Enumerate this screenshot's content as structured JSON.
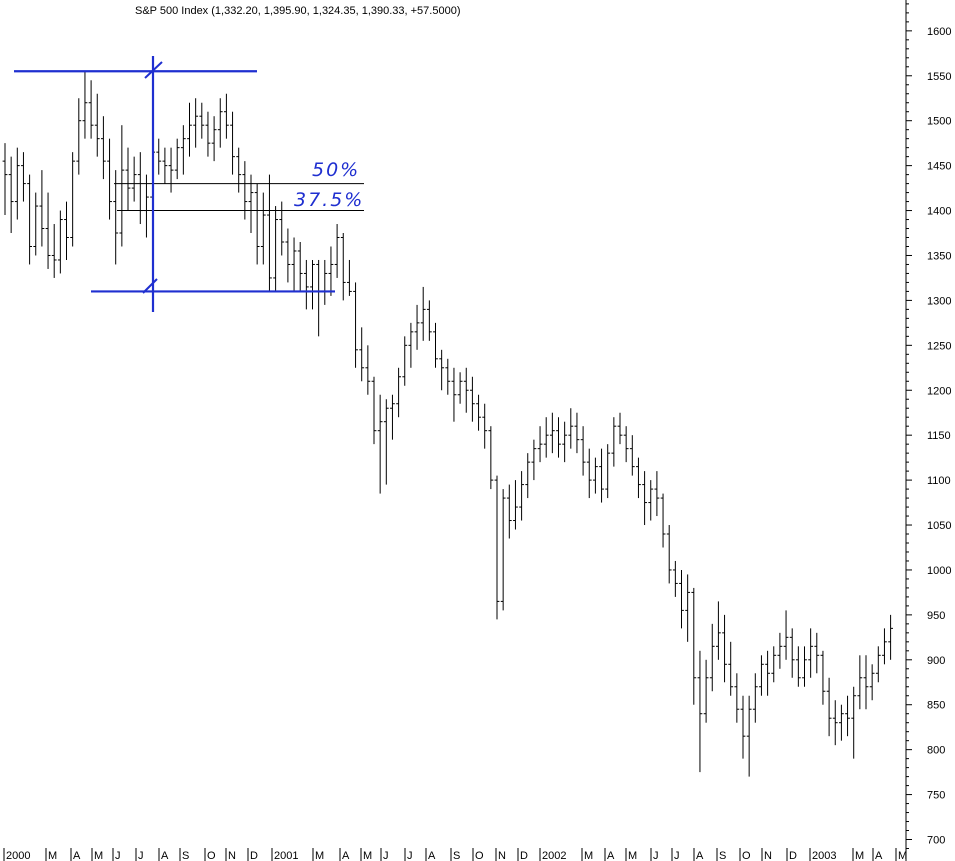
{
  "chart_data": {
    "type": "ohlc",
    "title": "S&P 500 Index (1,332.20, 1,395.90, 1,324.35, 1,390.33, +57.5000)",
    "y_axis": {
      "side": "right",
      "ylim": [
        700,
        1620
      ],
      "ticks": [
        700,
        750,
        800,
        850,
        900,
        950,
        1000,
        1050,
        1100,
        1150,
        1200,
        1250,
        1300,
        1350,
        1400,
        1450,
        1500,
        1550,
        1600
      ]
    },
    "x_axis": {
      "month_labels": [
        "2000",
        "M",
        "A",
        "M",
        "J",
        "J",
        "A",
        "S",
        "O",
        "N",
        "D",
        "2001",
        "M",
        "A",
        "M",
        "J",
        "J",
        "A",
        "S",
        "O",
        "N",
        "D",
        "2002",
        "M",
        "A",
        "M",
        "J",
        "J",
        "A",
        "S",
        "O",
        "N",
        "D",
        "2003",
        "M",
        "A",
        "M"
      ]
    },
    "grid": false,
    "bar_interval": "weekly",
    "bars": [
      [
        1455,
        1475,
        1395,
        1440
      ],
      [
        1440,
        1460,
        1375,
        1410
      ],
      [
        1410,
        1470,
        1390,
        1450
      ],
      [
        1450,
        1465,
        1410,
        1430
      ],
      [
        1430,
        1440,
        1340,
        1360
      ],
      [
        1360,
        1420,
        1350,
        1405
      ],
      [
        1405,
        1445,
        1360,
        1380
      ],
      [
        1380,
        1420,
        1335,
        1350
      ],
      [
        1350,
        1385,
        1325,
        1345
      ],
      [
        1345,
        1400,
        1330,
        1390
      ],
      [
        1390,
        1410,
        1345,
        1370
      ],
      [
        1370,
        1465,
        1360,
        1455
      ],
      [
        1455,
        1525,
        1440,
        1500
      ],
      [
        1500,
        1555,
        1480,
        1520
      ],
      [
        1520,
        1545,
        1480,
        1495
      ],
      [
        1495,
        1530,
        1460,
        1480
      ],
      [
        1480,
        1505,
        1435,
        1455
      ],
      [
        1455,
        1480,
        1390,
        1410
      ],
      [
        1410,
        1445,
        1340,
        1375
      ],
      [
        1375,
        1495,
        1360,
        1445
      ],
      [
        1445,
        1470,
        1400,
        1425
      ],
      [
        1425,
        1460,
        1410,
        1440
      ],
      [
        1440,
        1465,
        1385,
        1400
      ],
      [
        1400,
        1440,
        1370,
        1415
      ],
      [
        1415,
        1485,
        1400,
        1465
      ],
      [
        1465,
        1480,
        1440,
        1455
      ],
      [
        1455,
        1470,
        1430,
        1450
      ],
      [
        1450,
        1470,
        1420,
        1445
      ],
      [
        1445,
        1480,
        1435,
        1470
      ],
      [
        1470,
        1495,
        1440,
        1480
      ],
      [
        1480,
        1520,
        1460,
        1495
      ],
      [
        1495,
        1525,
        1470,
        1505
      ],
      [
        1505,
        1520,
        1480,
        1495
      ],
      [
        1495,
        1510,
        1460,
        1475
      ],
      [
        1475,
        1505,
        1455,
        1490
      ],
      [
        1490,
        1525,
        1470,
        1510
      ],
      [
        1510,
        1530,
        1480,
        1495
      ],
      [
        1495,
        1510,
        1440,
        1460
      ],
      [
        1460,
        1470,
        1420,
        1440
      ],
      [
        1440,
        1455,
        1390,
        1410
      ],
      [
        1410,
        1440,
        1375,
        1420
      ],
      [
        1420,
        1430,
        1340,
        1360
      ],
      [
        1360,
        1420,
        1340,
        1395
      ],
      [
        1395,
        1440,
        1310,
        1325
      ],
      [
        1325,
        1405,
        1310,
        1390
      ],
      [
        1390,
        1410,
        1350,
        1365
      ],
      [
        1365,
        1380,
        1320,
        1340
      ],
      [
        1340,
        1370,
        1310,
        1355
      ],
      [
        1355,
        1365,
        1310,
        1330
      ],
      [
        1330,
        1345,
        1290,
        1315
      ],
      [
        1315,
        1345,
        1290,
        1340
      ],
      [
        1340,
        1345,
        1260,
        1310
      ],
      [
        1310,
        1345,
        1295,
        1330
      ],
      [
        1330,
        1360,
        1305,
        1340
      ],
      [
        1340,
        1385,
        1325,
        1370
      ],
      [
        1370,
        1375,
        1300,
        1320
      ],
      [
        1320,
        1345,
        1305,
        1310
      ],
      [
        1310,
        1320,
        1225,
        1245
      ],
      [
        1245,
        1270,
        1210,
        1225
      ],
      [
        1225,
        1250,
        1195,
        1210
      ],
      [
        1210,
        1215,
        1140,
        1155
      ],
      [
        1155,
        1195,
        1085,
        1165
      ],
      [
        1165,
        1190,
        1095,
        1180
      ],
      [
        1180,
        1195,
        1145,
        1185
      ],
      [
        1185,
        1225,
        1170,
        1215
      ],
      [
        1215,
        1260,
        1205,
        1250
      ],
      [
        1250,
        1275,
        1225,
        1265
      ],
      [
        1265,
        1295,
        1245,
        1275
      ],
      [
        1275,
        1315,
        1255,
        1290
      ],
      [
        1290,
        1300,
        1255,
        1265
      ],
      [
        1265,
        1275,
        1225,
        1235
      ],
      [
        1235,
        1245,
        1200,
        1225
      ],
      [
        1225,
        1235,
        1195,
        1210
      ],
      [
        1210,
        1225,
        1165,
        1195
      ],
      [
        1195,
        1220,
        1185,
        1210
      ],
      [
        1210,
        1225,
        1175,
        1200
      ],
      [
        1200,
        1215,
        1165,
        1185
      ],
      [
        1185,
        1195,
        1155,
        1170
      ],
      [
        1170,
        1185,
        1135,
        1155
      ],
      [
        1155,
        1160,
        1090,
        1100
      ],
      [
        1100,
        1105,
        945,
        965
      ],
      [
        965,
        1090,
        955,
        1080
      ],
      [
        1080,
        1095,
        1035,
        1055
      ],
      [
        1055,
        1100,
        1045,
        1070
      ],
      [
        1070,
        1110,
        1055,
        1095
      ],
      [
        1095,
        1130,
        1080,
        1120
      ],
      [
        1120,
        1145,
        1100,
        1135
      ],
      [
        1135,
        1160,
        1120,
        1140
      ],
      [
        1140,
        1170,
        1125,
        1150
      ],
      [
        1150,
        1175,
        1130,
        1155
      ],
      [
        1155,
        1170,
        1125,
        1140
      ],
      [
        1140,
        1165,
        1120,
        1150
      ],
      [
        1150,
        1180,
        1135,
        1160
      ],
      [
        1160,
        1175,
        1130,
        1145
      ],
      [
        1145,
        1160,
        1105,
        1120
      ],
      [
        1120,
        1135,
        1080,
        1100
      ],
      [
        1100,
        1125,
        1085,
        1115
      ],
      [
        1115,
        1135,
        1075,
        1090
      ],
      [
        1090,
        1140,
        1080,
        1130
      ],
      [
        1130,
        1170,
        1115,
        1160
      ],
      [
        1160,
        1175,
        1140,
        1150
      ],
      [
        1150,
        1160,
        1120,
        1135
      ],
      [
        1135,
        1150,
        1105,
        1115
      ],
      [
        1115,
        1125,
        1080,
        1095
      ],
      [
        1095,
        1110,
        1050,
        1075
      ],
      [
        1075,
        1100,
        1055,
        1090
      ],
      [
        1090,
        1110,
        1060,
        1080
      ],
      [
        1080,
        1085,
        1025,
        1040
      ],
      [
        1040,
        1050,
        985,
        1000
      ],
      [
        1000,
        1010,
        970,
        985
      ],
      [
        985,
        1000,
        935,
        955
      ],
      [
        955,
        995,
        920,
        975
      ],
      [
        975,
        980,
        850,
        880
      ],
      [
        880,
        910,
        775,
        840
      ],
      [
        840,
        900,
        830,
        880
      ],
      [
        880,
        940,
        865,
        915
      ],
      [
        915,
        965,
        900,
        930
      ],
      [
        930,
        950,
        875,
        895
      ],
      [
        895,
        920,
        860,
        870
      ],
      [
        870,
        885,
        830,
        845
      ],
      [
        845,
        860,
        790,
        815
      ],
      [
        815,
        860,
        770,
        845
      ],
      [
        845,
        885,
        830,
        870
      ],
      [
        870,
        905,
        860,
        895
      ],
      [
        895,
        910,
        860,
        885
      ],
      [
        885,
        915,
        875,
        905
      ],
      [
        905,
        930,
        890,
        915
      ],
      [
        915,
        955,
        900,
        925
      ],
      [
        925,
        935,
        880,
        900
      ],
      [
        900,
        915,
        870,
        880
      ],
      [
        880,
        915,
        870,
        900
      ],
      [
        900,
        935,
        880,
        915
      ],
      [
        915,
        930,
        885,
        905
      ],
      [
        905,
        910,
        850,
        865
      ],
      [
        865,
        880,
        815,
        835
      ],
      [
        835,
        855,
        805,
        830
      ],
      [
        830,
        850,
        810,
        840
      ],
      [
        840,
        860,
        815,
        835
      ],
      [
        835,
        870,
        790,
        860
      ],
      [
        860,
        905,
        845,
        880
      ],
      [
        880,
        905,
        845,
        870
      ],
      [
        870,
        895,
        855,
        885
      ],
      [
        885,
        915,
        875,
        905
      ],
      [
        905,
        935,
        895,
        920
      ],
      [
        920,
        950,
        900,
        935
      ]
    ],
    "annotations": {
      "text": [
        "50%",
        "37.5%"
      ],
      "lines": [
        {
          "type": "horizontal",
          "y": 1555
        },
        {
          "type": "horizontal",
          "y": 1310
        },
        {
          "type": "horizontal",
          "y": 1430
        },
        {
          "type": "horizontal",
          "y": 1400
        },
        {
          "type": "vertical"
        }
      ],
      "color": "#1f2fd0"
    }
  }
}
